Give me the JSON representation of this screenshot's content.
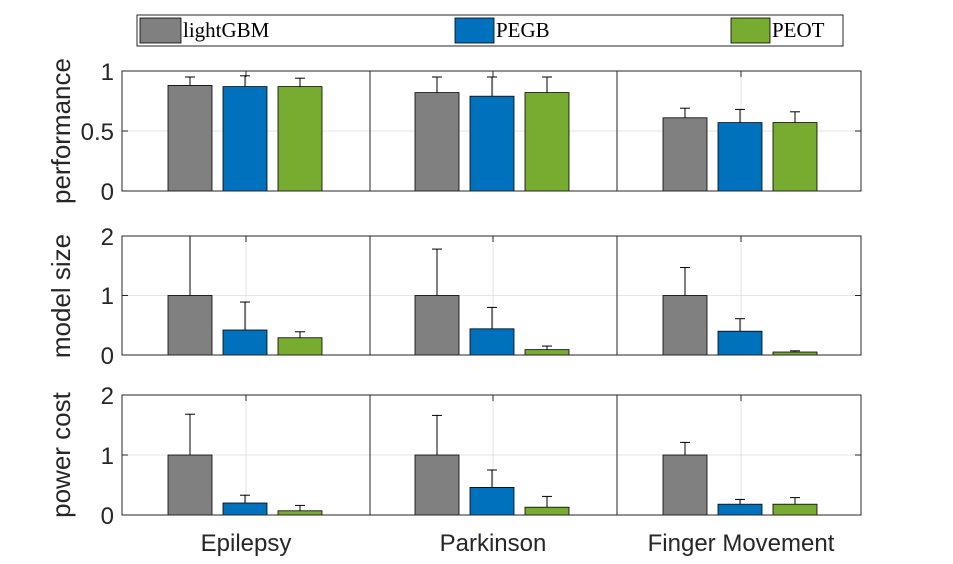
{
  "chart_data": {
    "type": "bar",
    "categories": [
      "Epilepsy",
      "Parkinson",
      "Finger Movement"
    ],
    "legend": [
      {
        "name": "lightGBM",
        "color": "#808080"
      },
      {
        "name": "PEGB",
        "color": "#0072BD"
      },
      {
        "name": "PEOT",
        "color": "#77AC30"
      }
    ],
    "legend_position": "top",
    "grid": true,
    "panels": [
      {
        "ylabel": "performance",
        "ylim": [
          0,
          1
        ],
        "yticks": [
          0,
          0.5,
          1
        ],
        "ytick_labels": [
          "0",
          "0.5",
          "1"
        ],
        "series": [
          {
            "name": "lightGBM",
            "values": [
              0.88,
              0.82,
              0.61
            ],
            "errors": [
              0.07,
              0.13,
              0.08
            ]
          },
          {
            "name": "PEGB",
            "values": [
              0.87,
              0.79,
              0.57
            ],
            "errors": [
              0.09,
              0.16,
              0.11
            ]
          },
          {
            "name": "PEOT",
            "values": [
              0.87,
              0.82,
              0.57
            ],
            "errors": [
              0.07,
              0.13,
              0.09
            ]
          }
        ]
      },
      {
        "ylabel": "model size",
        "ylim": [
          0,
          2
        ],
        "yticks": [
          0,
          1,
          2
        ],
        "ytick_labels": [
          "0",
          "1",
          "2"
        ],
        "series": [
          {
            "name": "lightGBM",
            "values": [
              1.0,
              1.0,
              1.0
            ],
            "errors": [
              1.05,
              0.78,
              0.47
            ]
          },
          {
            "name": "PEGB",
            "values": [
              0.42,
              0.44,
              0.4
            ],
            "errors": [
              0.47,
              0.36,
              0.21
            ]
          },
          {
            "name": "PEOT",
            "values": [
              0.29,
              0.09,
              0.05
            ],
            "errors": [
              0.1,
              0.06,
              0.02
            ]
          }
        ]
      },
      {
        "ylabel": "power cost",
        "ylim": [
          0,
          2
        ],
        "yticks": [
          0,
          1,
          2
        ],
        "ytick_labels": [
          "0",
          "1",
          "2"
        ],
        "series": [
          {
            "name": "lightGBM",
            "values": [
              1.0,
              1.0,
              1.0
            ],
            "errors": [
              0.68,
              0.66,
              0.21
            ]
          },
          {
            "name": "PEGB",
            "values": [
              0.2,
              0.46,
              0.18
            ],
            "errors": [
              0.13,
              0.29,
              0.08
            ]
          },
          {
            "name": "PEOT",
            "values": [
              0.07,
              0.13,
              0.18
            ],
            "errors": [
              0.09,
              0.18,
              0.11
            ]
          }
        ]
      }
    ]
  }
}
